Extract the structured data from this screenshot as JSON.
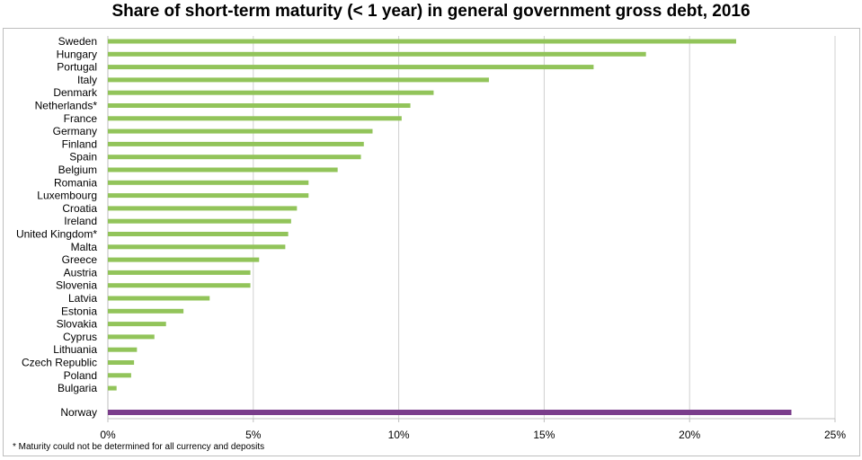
{
  "chart_data": {
    "type": "bar",
    "orientation": "horizontal",
    "title": "Share of short-term maturity (< 1 year) in general government gross debt, 2016",
    "categories": [
      "Sweden",
      "Hungary",
      "Portugal",
      "Italy",
      "Denmark",
      "Netherlands*",
      "France",
      "Germany",
      "Finland",
      "Spain",
      "Belgium",
      "Romania",
      "Luxembourg",
      "Croatia",
      "Ireland",
      "United Kingdom*",
      "Malta",
      "Greece",
      "Austria",
      "Slovenia",
      "Latvia",
      "Estonia",
      "Slovakia",
      "Cyprus",
      "Lithuania",
      "Czech Republic",
      "Poland",
      "Bulgaria",
      "Norway"
    ],
    "values": [
      21.6,
      18.5,
      16.7,
      13.1,
      11.2,
      10.4,
      10.1,
      9.1,
      8.8,
      8.7,
      7.9,
      6.9,
      6.9,
      6.5,
      6.3,
      6.2,
      6.1,
      5.2,
      4.9,
      4.9,
      3.5,
      2.6,
      2.0,
      1.6,
      1.0,
      0.9,
      0.8,
      0.3,
      23.5
    ],
    "colors": {
      "eu": "#92c45a",
      "norway": "#7a3d8b",
      "grid": "#d0d0d0",
      "axis": "#bfbfbf"
    },
    "highlight": "Norway",
    "xlim": [
      0,
      25
    ],
    "xticks": [
      0,
      5,
      10,
      15,
      20,
      25
    ],
    "xtick_labels": [
      "0%",
      "5%",
      "10%",
      "15%",
      "20%",
      "25%"
    ],
    "grid": true,
    "legend": "none"
  },
  "footnote": "* Maturity could not be determined for all currency and deposits"
}
